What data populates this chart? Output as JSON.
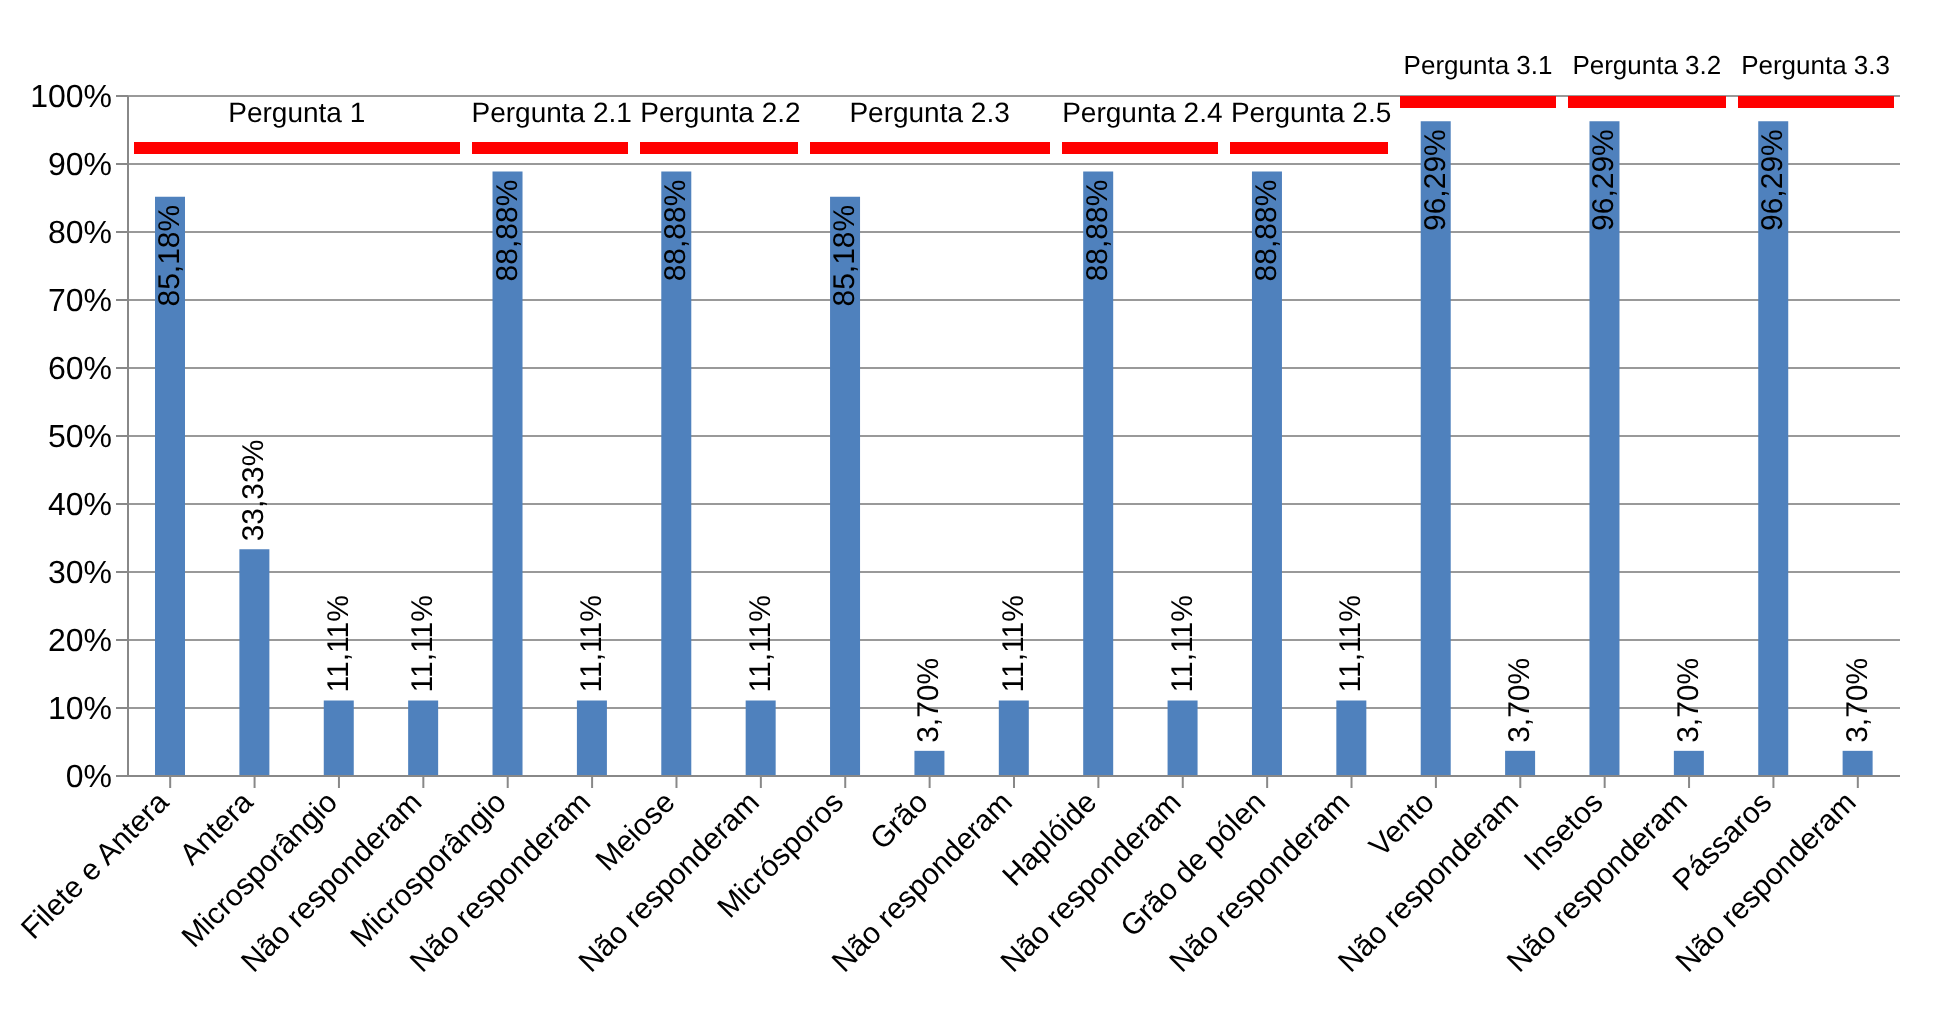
{
  "chart_data": {
    "type": "bar",
    "categories": [
      "Filete e Antera",
      "Antera",
      "Microsporângio",
      "Não responderam",
      "Microsporângio",
      "Não responderam",
      "Meiose",
      "Não responderam",
      "Micrósporos",
      "Grão",
      "Não responderam",
      "Haplóide",
      "Não responderam",
      "Grão de pólen",
      "Não responderam",
      "Vento",
      "Não responderam",
      "Insetos",
      "Não responderam",
      "Pássaros",
      "Não responderam"
    ],
    "values": [
      85.18,
      33.33,
      11.11,
      11.11,
      88.88,
      11.11,
      88.88,
      11.11,
      85.18,
      3.7,
      11.11,
      88.88,
      11.11,
      88.88,
      11.11,
      96.29,
      3.7,
      96.29,
      3.7,
      96.29,
      3.7
    ],
    "value_labels": [
      "85,18%",
      "33,33%",
      "11,11%",
      "11,11%",
      "88,88%",
      "11,11%",
      "88,88%",
      "11,11%",
      "85,18%",
      "3,70%",
      "11,11%",
      "88,88%",
      "11,11%",
      "88,88%",
      "11,11%",
      "96,29%",
      "3,70%",
      "96,29%",
      "3,70%",
      "96,29%",
      "3,70%"
    ],
    "color": "#4f81bd",
    "ylim": [
      0,
      100
    ],
    "yticks": [
      {
        "value": 0,
        "label": "0%"
      },
      {
        "value": 10,
        "label": "10%"
      },
      {
        "value": 20,
        "label": "20%"
      },
      {
        "value": 30,
        "label": "30%"
      },
      {
        "value": 40,
        "label": "40%"
      },
      {
        "value": 50,
        "label": "50%"
      },
      {
        "value": 60,
        "label": "60%"
      },
      {
        "value": 70,
        "label": "70%"
      },
      {
        "value": 80,
        "label": "80%"
      },
      {
        "value": 90,
        "label": "90%"
      },
      {
        "value": 100,
        "label": "100%"
      }
    ],
    "grid": "y",
    "annotations": [
      "Pergunta 1",
      "Pergunta 2.1",
      "Pergunta 2.2",
      "Pergunta 2.3",
      "Pergunta 2.4",
      "Pergunta 2.5",
      "Pergunta 3.1",
      "Pergunta 3.2",
      "Pergunta 3.3"
    ]
  }
}
